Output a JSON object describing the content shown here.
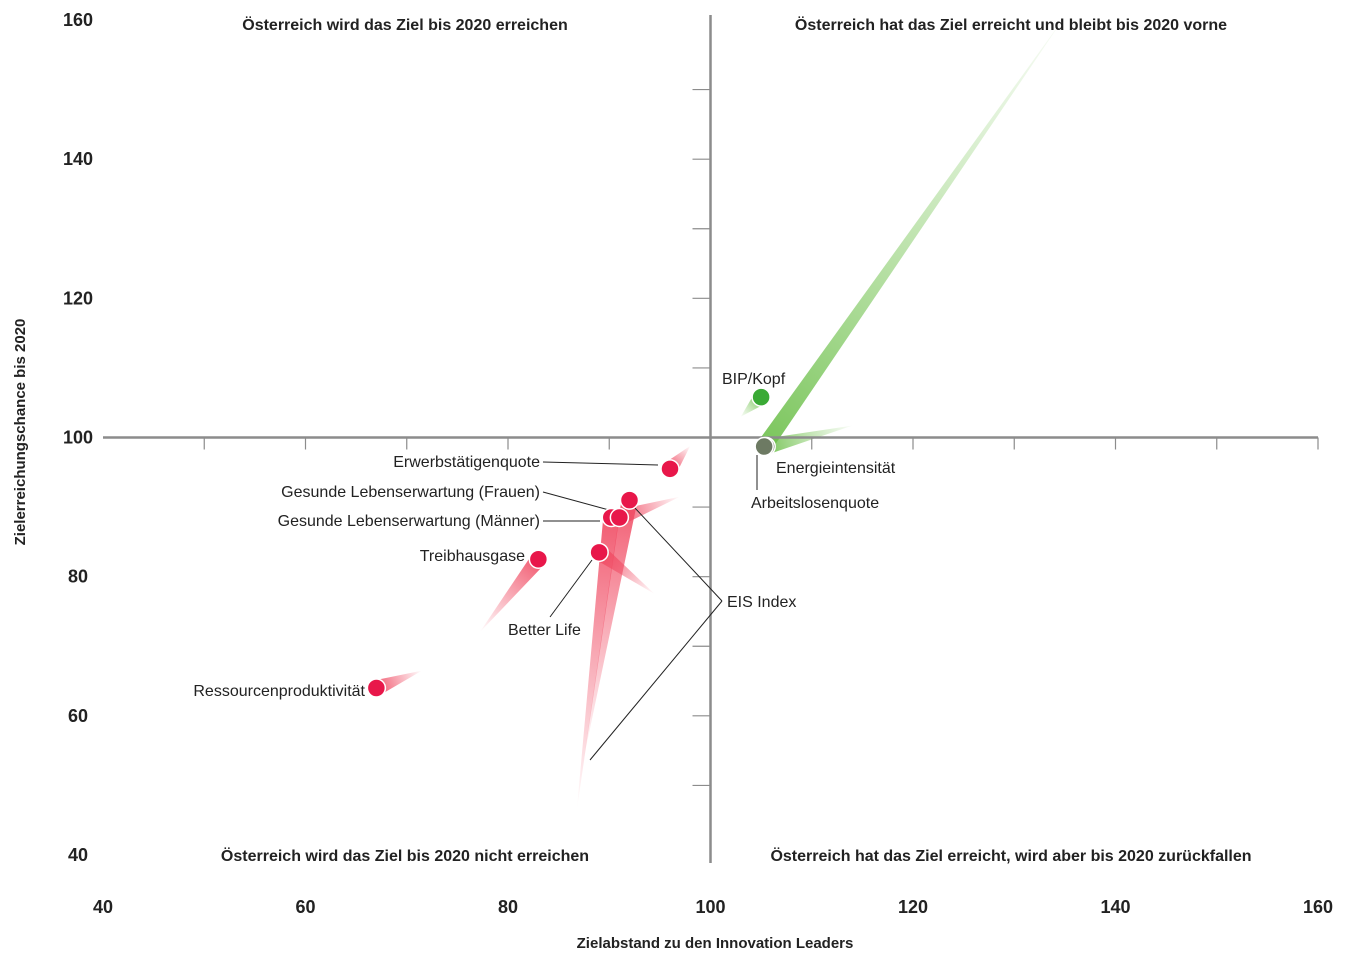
{
  "chart_data": {
    "type": "scatter",
    "xlabel": "Zielabstand zu den Innovation Leaders",
    "ylabel": "Zielerreichungschance bis 2020",
    "xlim": [
      40,
      160
    ],
    "ylim": [
      40,
      160
    ],
    "x_ticks": [
      "40",
      "60",
      "80",
      "100",
      "120",
      "140",
      "160"
    ],
    "y_ticks": [
      "40",
      "60",
      "80",
      "100",
      "120",
      "140",
      "160"
    ],
    "reference_lines": {
      "x": 100,
      "y": 100
    },
    "quadrants": {
      "top_left": "Österreich wird das Ziel bis 2020 erreichen",
      "top_right": "Österreich hat das Ziel erreicht und bleibt bis 2020 vorne",
      "bottom_left": "Österreich wird das Ziel bis 2020 nicht erreichen",
      "bottom_right": "Österreich hat das Ziel erreicht, wird aber bis 2020 zurückfallen"
    },
    "colors": {
      "below_target": "#e8174a",
      "above_target": "#3aaa35",
      "neutral": "#6d7a63",
      "axes": "#8c8c8c"
    },
    "points": [
      {
        "label": "Erwerbstätigenquote",
        "x": 96,
        "y": 95.5,
        "tail_x": 98,
        "tail_y": 98.8,
        "color": "#e8174a"
      },
      {
        "label": "Gesunde Lebenserwartung (Frauen)",
        "x": 92,
        "y": 91,
        "tail_x": 87.5,
        "tail_y": 54,
        "color": "#e8174a"
      },
      {
        "label": "Gesunde Lebenserwartung (Männer)",
        "x": 90.2,
        "y": 88.5,
        "tail_x": 86.8,
        "tail_y": 46.5,
        "color": "#e8174a"
      },
      {
        "label": "EIS Index",
        "x": 91,
        "y": 88.5,
        "tail_x": 97,
        "tail_y": 91.5,
        "color": "#e8174a"
      },
      {
        "label": "Treibhausgase",
        "x": 83,
        "y": 82.5,
        "tail_x": 77.2,
        "tail_y": 72,
        "color": "#e8174a"
      },
      {
        "label": "Better Life",
        "x": 89,
        "y": 83.5,
        "tail_x": 94.5,
        "tail_y": 77.5,
        "color": "#e8174a"
      },
      {
        "label": "Ressourcenproduktivität",
        "x": 67,
        "y": 64,
        "tail_x": 71.5,
        "tail_y": 66.5,
        "color": "#e8174a"
      },
      {
        "label": "BIP/Kopf",
        "x": 105,
        "y": 105.8,
        "tail_x": 103,
        "tail_y": 103,
        "color": "#3aaa35"
      },
      {
        "label": "Energieintensität",
        "x": 105.5,
        "y": 98.7,
        "tail_x": 114,
        "tail_y": 101.7,
        "color": "#6d7a63"
      },
      {
        "label": "Arbeitslosenquote",
        "x": 105.3,
        "y": 98.7,
        "tail_x": 135,
        "tail_y": 160.5,
        "color": "#6d7a63"
      }
    ]
  }
}
